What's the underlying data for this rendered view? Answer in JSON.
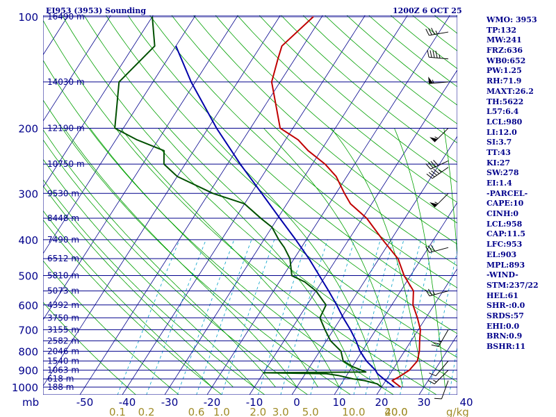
{
  "header": {
    "station": "EI953 (3953) Sounding",
    "time": "1200Z  6 OCT 25"
  },
  "indices": [
    "WMO: 3953",
    "TP:132",
    "MW:241",
    "FRZ:636",
    "WB0:652",
    "PW:1.25",
    "RH:71.9",
    "MAXT:26.2",
    "TH:5622",
    "L57:6.4",
    "LCL:980",
    "LI:12.0",
    "SI:3.7",
    "TT:43",
    "KI:27",
    "SW:278",
    "EI:1.4",
    "-PARCEL-",
    "CAPE:10",
    "CINH:0",
    "LCL:958",
    "CAP:11.5",
    "LFC:953",
    "EL:903",
    "MPL:893",
    "-WIND-",
    "STM:237/22",
    "HEL:61",
    "SHR-:0.0",
    "SRDS:57",
    "EHI:0.0",
    "BRN:0.9",
    "BSHR:11"
  ],
  "colors": {
    "isobar": "#00008b",
    "isotherm": "#00008b",
    "dry_adiabat": "#00a000",
    "moist_adiabat": "#00a000",
    "mixing_ratio": "#00a0c8",
    "temperature": "#c00000",
    "dewpoint": "#005000",
    "parcel": "#0000aa",
    "text": "#00008b",
    "mixing_label": "#a08c28"
  },
  "chart_data": {
    "type": "skew-t",
    "xlabel": "",
    "ylabel": "",
    "y_unit": "mb",
    "ylim": [
      1000,
      100
    ],
    "y_scale": "log",
    "pressure_ticks": [
      "100",
      "200",
      "300",
      "400",
      "500",
      "600",
      "700",
      "800",
      "900",
      "1000"
    ],
    "temp_ticks": [
      "-50",
      "-40",
      "-30",
      "-20",
      "-10",
      "0",
      "10",
      "20",
      "30",
      "40"
    ],
    "mixing_ratio_ticks": [
      "0.1",
      "0.2",
      "0.6",
      "1.0",
      "2.0",
      "3.0",
      "5.0",
      "10.0",
      "20.0",
      "40.0"
    ],
    "mixing_ratio_unit": "g/kg",
    "height_labels": [
      {
        "p": 100,
        "text": "16490 m"
      },
      {
        "p": 150,
        "text": "14030 m"
      },
      {
        "p": 200,
        "text": "12190 m"
      },
      {
        "p": 250,
        "text": "10750 m"
      },
      {
        "p": 300,
        "text": "9530 m"
      },
      {
        "p": 350,
        "text": "8448 m"
      },
      {
        "p": 400,
        "text": "7490 m"
      },
      {
        "p": 450,
        "text": "6512 m"
      },
      {
        "p": 500,
        "text": "5810 m"
      },
      {
        "p": 550,
        "text": "5073 m"
      },
      {
        "p": 600,
        "text": "4392 m"
      },
      {
        "p": 650,
        "text": "3750 m"
      },
      {
        "p": 700,
        "text": "3155 m"
      },
      {
        "p": 750,
        "text": "2582 m"
      },
      {
        "p": 800,
        "text": "2046 m"
      },
      {
        "p": 850,
        "text": "1540 m"
      },
      {
        "p": 900,
        "text": "1063 m"
      },
      {
        "p": 950,
        "text": "618 m"
      },
      {
        "p": 1000,
        "text": "188 m"
      }
    ],
    "series": [
      {
        "key": "temperature",
        "points": [
          [
            1000,
            24.5
          ],
          [
            980,
            23
          ],
          [
            960,
            21.5
          ],
          [
            940,
            22.5
          ],
          [
            900,
            24
          ],
          [
            850,
            24.5
          ],
          [
            800,
            23.5
          ],
          [
            750,
            22
          ],
          [
            700,
            20.5
          ],
          [
            650,
            18
          ],
          [
            600,
            15
          ],
          [
            550,
            13
          ],
          [
            500,
            8.5
          ],
          [
            450,
            4.5
          ],
          [
            400,
            -2
          ],
          [
            350,
            -9
          ],
          [
            320,
            -15
          ],
          [
            300,
            -18
          ],
          [
            270,
            -22.5
          ],
          [
            250,
            -27
          ],
          [
            230,
            -33
          ],
          [
            215,
            -37
          ],
          [
            200,
            -43
          ],
          [
            150,
            -52
          ],
          [
            130,
            -54
          ],
          [
            120,
            -55
          ],
          [
            100,
            -52
          ]
        ]
      },
      {
        "key": "dewpoint",
        "points": [
          [
            1000,
            20
          ],
          [
            980,
            18.5
          ],
          [
            960,
            15
          ],
          [
            950,
            12
          ],
          [
            930,
            8
          ],
          [
            920,
            5
          ],
          [
            915,
            -10
          ],
          [
            910,
            14
          ],
          [
            880,
            10
          ],
          [
            850,
            7
          ],
          [
            800,
            5
          ],
          [
            750,
            1
          ],
          [
            700,
            -2
          ],
          [
            650,
            -5
          ],
          [
            600,
            -5.5
          ],
          [
            550,
            -10
          ],
          [
            520,
            -14
          ],
          [
            500,
            -18
          ],
          [
            450,
            -21
          ],
          [
            420,
            -24
          ],
          [
            400,
            -26.5
          ],
          [
            370,
            -30
          ],
          [
            350,
            -34
          ],
          [
            320,
            -40
          ],
          [
            300,
            -49
          ],
          [
            270,
            -60
          ],
          [
            250,
            -65
          ],
          [
            230,
            -67
          ],
          [
            215,
            -75
          ],
          [
            200,
            -82
          ],
          [
            150,
            -88
          ],
          [
            120,
            -85
          ],
          [
            100,
            -90
          ]
        ]
      },
      {
        "key": "parcel",
        "points": [
          [
            1000,
            23
          ],
          [
            960,
            20
          ],
          [
            920,
            17
          ],
          [
            900,
            16
          ],
          [
            850,
            12.5
          ],
          [
            800,
            9.5
          ],
          [
            750,
            7
          ],
          [
            700,
            4
          ],
          [
            650,
            0.5
          ],
          [
            600,
            -3
          ],
          [
            550,
            -7
          ],
          [
            500,
            -11.5
          ],
          [
            450,
            -16.5
          ],
          [
            400,
            -22.5
          ],
          [
            350,
            -29.5
          ],
          [
            300,
            -37.5
          ],
          [
            250,
            -47
          ],
          [
            200,
            -58
          ],
          [
            150,
            -71
          ],
          [
            120,
            -80
          ]
        ]
      }
    ],
    "wind_barbs": [
      {
        "p": 110,
        "dir": 260,
        "speed": 35
      },
      {
        "p": 130,
        "dir": 275,
        "speed": 45
      },
      {
        "p": 150,
        "dir": 265,
        "speed": 55
      },
      {
        "p": 200,
        "dir": 225,
        "speed": 55
      },
      {
        "p": 245,
        "dir": 245,
        "speed": 40
      },
      {
        "p": 255,
        "dir": 235,
        "speed": 45
      },
      {
        "p": 300,
        "dir": 225,
        "speed": 55
      },
      {
        "p": 420,
        "dir": 255,
        "speed": 30
      },
      {
        "p": 550,
        "dir": 255,
        "speed": 25
      },
      {
        "p": 700,
        "dir": 210,
        "speed": 25
      },
      {
        "p": 850,
        "dir": 220,
        "speed": 10
      },
      {
        "p": 900,
        "dir": 225,
        "speed": 15
      },
      {
        "p": 960,
        "dir": 200,
        "speed": 10
      }
    ]
  }
}
